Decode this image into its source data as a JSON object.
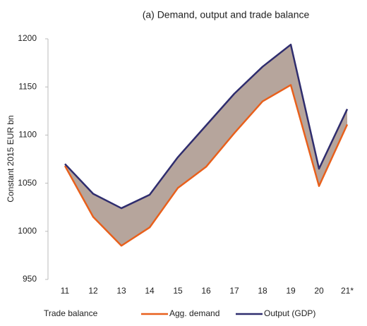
{
  "chart_data": {
    "type": "line",
    "title": "(a) Demand, output and trade balance",
    "y_label": "Constant 2015 EUR bn",
    "categories": [
      "11",
      "12",
      "13",
      "14",
      "15",
      "16",
      "17",
      "18",
      "19",
      "20",
      "21*"
    ],
    "series": [
      {
        "name": "Trade balance",
        "color": "#b6a59c",
        "values": [
          2,
          24,
          39,
          34,
          32,
          43,
          41,
          36,
          42,
          18,
          16
        ]
      },
      {
        "name": "Agg. demand",
        "color": "#e8601c",
        "values": [
          1068,
          1015,
          985,
          1004,
          1045,
          1067,
          1102,
          1135,
          1152,
          1047,
          1111
        ]
      },
      {
        "name": "Output (GDP)",
        "color": "#2f2d6e",
        "values": [
          1070,
          1039,
          1024,
          1038,
          1077,
          1110,
          1143,
          1171,
          1194,
          1065,
          1127
        ]
      }
    ],
    "ylim": [
      950,
      1200
    ],
    "yticks": [
      950,
      1000,
      1050,
      1100,
      1150,
      1200
    ],
    "grid": false
  }
}
